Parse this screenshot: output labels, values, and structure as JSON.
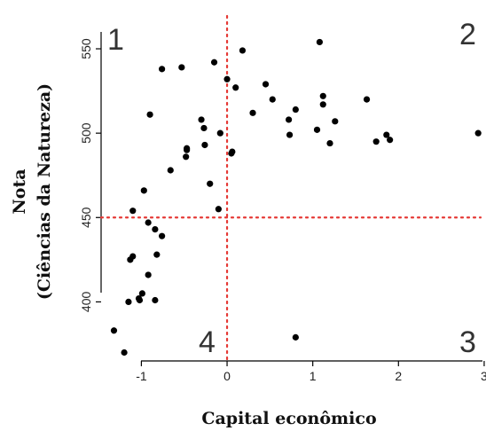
{
  "chart_data": {
    "type": "scatter",
    "xlabel": "Capital econômico",
    "ylabel_lines": [
      "Nota",
      "(Ciências da Natureza)"
    ],
    "xlim": [
      -1.47,
      2.98
    ],
    "ylim": [
      365,
      560
    ],
    "x_ticks": [
      -1,
      0,
      1,
      2,
      3
    ],
    "y_ticks": [
      400,
      450,
      500,
      550
    ],
    "x_tick_labels": [
      "-1",
      "0",
      "1",
      "2",
      "3"
    ],
    "y_tick_labels": [
      "400",
      "450",
      "500",
      "550"
    ],
    "reference_lines": {
      "x": 0,
      "y": 450,
      "color": "#e53935",
      "style": "dotted"
    },
    "quadrant_labels": [
      "1",
      "2",
      "3",
      "4"
    ],
    "point_color": "#000000",
    "points": [
      [
        -1.32,
        383
      ],
      [
        -1.2,
        370
      ],
      [
        -1.15,
        400
      ],
      [
        -1.13,
        425
      ],
      [
        -1.1,
        454
      ],
      [
        -1.1,
        427
      ],
      [
        -1.02,
        401
      ],
      [
        -1.03,
        402
      ],
      [
        -0.99,
        405
      ],
      [
        -0.97,
        466
      ],
      [
        -0.92,
        447
      ],
      [
        -0.92,
        416
      ],
      [
        -0.9,
        511
      ],
      [
        -0.84,
        443
      ],
      [
        -0.84,
        401
      ],
      [
        -0.82,
        428
      ],
      [
        -0.76,
        439
      ],
      [
        -0.76,
        538
      ],
      [
        -0.66,
        478
      ],
      [
        -0.53,
        539
      ],
      [
        -0.48,
        486
      ],
      [
        -0.47,
        490
      ],
      [
        -0.47,
        491
      ],
      [
        -0.3,
        508
      ],
      [
        -0.27,
        503
      ],
      [
        -0.26,
        493
      ],
      [
        -0.2,
        470
      ],
      [
        -0.15,
        542
      ],
      [
        -0.1,
        455
      ],
      [
        -0.08,
        500
      ],
      [
        0.0,
        532
      ],
      [
        0.05,
        488
      ],
      [
        0.06,
        489
      ],
      [
        0.1,
        527
      ],
      [
        0.18,
        549
      ],
      [
        0.3,
        512
      ],
      [
        0.45,
        529
      ],
      [
        0.53,
        520
      ],
      [
        0.72,
        508
      ],
      [
        0.73,
        499
      ],
      [
        0.8,
        514
      ],
      [
        0.8,
        379
      ],
      [
        1.05,
        502
      ],
      [
        1.08,
        554
      ],
      [
        1.12,
        522
      ],
      [
        1.12,
        517
      ],
      [
        1.2,
        494
      ],
      [
        1.26,
        507
      ],
      [
        1.63,
        520
      ],
      [
        1.74,
        495
      ],
      [
        1.86,
        499
      ],
      [
        1.9,
        496
      ],
      [
        2.93,
        500
      ]
    ]
  }
}
